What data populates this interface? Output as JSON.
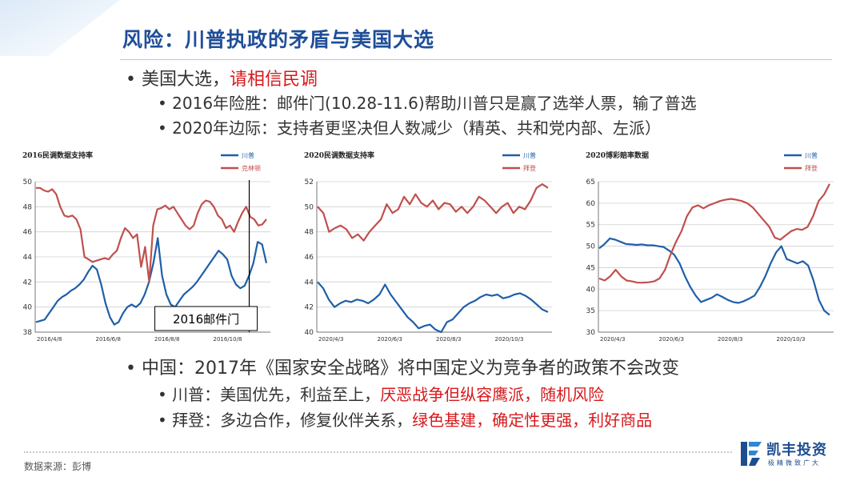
{
  "slide": {
    "title": "风险：川普执政的矛盾与美国大选",
    "source": "数据来源：彭博",
    "logo": {
      "name": "凯丰投资",
      "slogan": "极精微致广大"
    }
  },
  "bullets": {
    "b1": {
      "text": "美国大选，",
      "highlight": "请相信民调"
    },
    "b1_1": {
      "text": "2016年险胜：邮件门(10.28-11.6)帮助川普只是赢了选举人票，输了普选"
    },
    "b1_2": {
      "text": "2020年边际：支持者更坚决但人数减少（精英、共和党内部、左派）"
    },
    "b2": {
      "text": "中国：2017年《国家安全战略》将中国定义为竞争者的政策不会改变"
    },
    "b2_1": {
      "text": "川普：美国优先，利益至上，",
      "highlight": "厌恶战争但纵容鹰派，随机风险"
    },
    "b2_2": {
      "text": "拜登：多边合作，修复伙伴关系，",
      "highlight": "绿色基建，确定性更强，利好商品"
    }
  },
  "colors": {
    "blue": "#1f5fa8",
    "red": "#c0504d",
    "title": "#1f4e99",
    "accent_red": "#d7191c"
  },
  "chart_data": [
    {
      "type": "line",
      "title": "2016民调数据支持率",
      "ylim": [
        38,
        50
      ],
      "yticks": [
        38,
        40,
        42,
        44,
        46,
        48,
        50
      ],
      "xticks": [
        "2016/4/8",
        "2016/6/8",
        "2016/8/8",
        "2016/10/8"
      ],
      "annotation": {
        "text": "2016邮件门",
        "at": 0.91
      },
      "grid": true,
      "legend": "top-right",
      "series": [
        {
          "name": "川普",
          "color": "#1f5fa8",
          "values": [
            38.8,
            38.9,
            39.0,
            39.5,
            40.0,
            40.5,
            40.8,
            41.0,
            41.3,
            41.5,
            41.8,
            42.2,
            42.8,
            43.3,
            43.0,
            41.8,
            40.3,
            39.2,
            38.6,
            38.8,
            39.5,
            40.0,
            40.2,
            40.0,
            40.3,
            41.0,
            42.0,
            43.5,
            45.5,
            42.5,
            41.0,
            40.2,
            40.0,
            40.5,
            41.0,
            41.3,
            41.6,
            42.0,
            42.5,
            43.0,
            43.5,
            44.0,
            44.5,
            44.2,
            43.8,
            42.5,
            41.8,
            41.5,
            41.7,
            42.5,
            43.5,
            45.2,
            45.0,
            43.5
          ]
        },
        {
          "name": "克林顿",
          "color": "#c0504d",
          "values": [
            49.5,
            49.5,
            49.3,
            49.2,
            49.4,
            49.0,
            48.0,
            47.3,
            47.2,
            47.3,
            47.0,
            46.2,
            44.0,
            43.8,
            43.6,
            43.7,
            43.8,
            43.9,
            43.8,
            44.2,
            44.5,
            45.5,
            46.3,
            46.0,
            45.5,
            45.8,
            43.2,
            44.8,
            42.0,
            46.5,
            47.8,
            47.9,
            48.1,
            47.8,
            48.0,
            47.5,
            47.0,
            46.5,
            46.2,
            46.5,
            47.5,
            48.2,
            48.5,
            48.4,
            48.0,
            47.3,
            47.0,
            46.3,
            46.5,
            46.0,
            46.8,
            47.5,
            48.0,
            47.2,
            47.0,
            46.5,
            46.6,
            47.0
          ]
        }
      ]
    },
    {
      "type": "line",
      "title": "2020民调数据支持率",
      "ylim": [
        40,
        52
      ],
      "yticks": [
        40,
        42,
        44,
        46,
        48,
        50,
        52
      ],
      "xticks": [
        "2020/4/3",
        "2020/6/3",
        "2020/8/3",
        "2020/10/3"
      ],
      "grid": true,
      "legend": "top-right",
      "series": [
        {
          "name": "川普",
          "color": "#1f5fa8",
          "values": [
            44.0,
            43.5,
            42.6,
            42.0,
            42.3,
            42.5,
            42.4,
            42.6,
            42.5,
            42.3,
            42.6,
            43.0,
            43.8,
            43.0,
            42.4,
            41.8,
            41.2,
            40.8,
            40.3,
            40.5,
            40.6,
            40.2,
            40.0,
            40.8,
            41.0,
            41.5,
            42.0,
            42.3,
            42.5,
            42.8,
            43.0,
            42.9,
            43.0,
            42.7,
            42.8,
            43.0,
            43.1,
            42.9,
            42.6,
            42.2,
            41.8,
            41.6
          ]
        },
        {
          "name": "拜登",
          "color": "#c0504d",
          "values": [
            50.0,
            49.5,
            48.0,
            48.3,
            48.5,
            48.2,
            47.5,
            47.8,
            47.3,
            48.0,
            48.5,
            49.0,
            50.2,
            49.5,
            49.8,
            50.8,
            50.2,
            51.0,
            50.3,
            50.0,
            50.5,
            49.8,
            50.3,
            50.2,
            49.6,
            50.0,
            49.5,
            50.0,
            50.8,
            50.5,
            50.0,
            49.5,
            50.0,
            50.3,
            49.5,
            50.0,
            49.8,
            50.5,
            51.5,
            51.8,
            51.5
          ]
        }
      ]
    },
    {
      "type": "line",
      "title": "2020博彩赔率数据",
      "ylim": [
        30,
        65
      ],
      "yticks": [
        30,
        35,
        40,
        45,
        50,
        55,
        60,
        65
      ],
      "xticks": [
        "2020/4/3",
        "2020/6/3",
        "2020/8/3",
        "2020/10/3"
      ],
      "grid": true,
      "legend": "top-right",
      "series": [
        {
          "name": "川普",
          "color": "#1f5fa8",
          "values": [
            49.5,
            50.5,
            51.8,
            51.5,
            51.0,
            50.5,
            50.4,
            50.3,
            50.4,
            50.2,
            50.2,
            50.0,
            49.8,
            49.0,
            48.0,
            46.0,
            43.0,
            40.5,
            38.5,
            37.0,
            37.5,
            38.0,
            38.8,
            38.2,
            37.5,
            37.0,
            36.8,
            37.2,
            37.8,
            38.5,
            40.5,
            43.0,
            46.0,
            48.5,
            50.0,
            47.0,
            46.5,
            46.0,
            46.5,
            45.5,
            42.0,
            37.5,
            35.0,
            34.0
          ]
        },
        {
          "name": "拜登",
          "color": "#c0504d",
          "values": [
            42.5,
            42.0,
            43.0,
            44.5,
            43.0,
            42.0,
            41.8,
            41.5,
            41.5,
            41.6,
            41.8,
            42.5,
            44.5,
            48.0,
            51.0,
            53.5,
            57.0,
            59.0,
            59.5,
            58.8,
            59.5,
            60.0,
            60.5,
            60.8,
            61.0,
            60.8,
            60.5,
            60.0,
            59.0,
            57.5,
            56.0,
            54.5,
            52.0,
            51.5,
            52.5,
            53.5,
            54.0,
            53.8,
            54.5,
            57.0,
            60.5,
            62.0,
            64.5
          ]
        }
      ]
    }
  ]
}
